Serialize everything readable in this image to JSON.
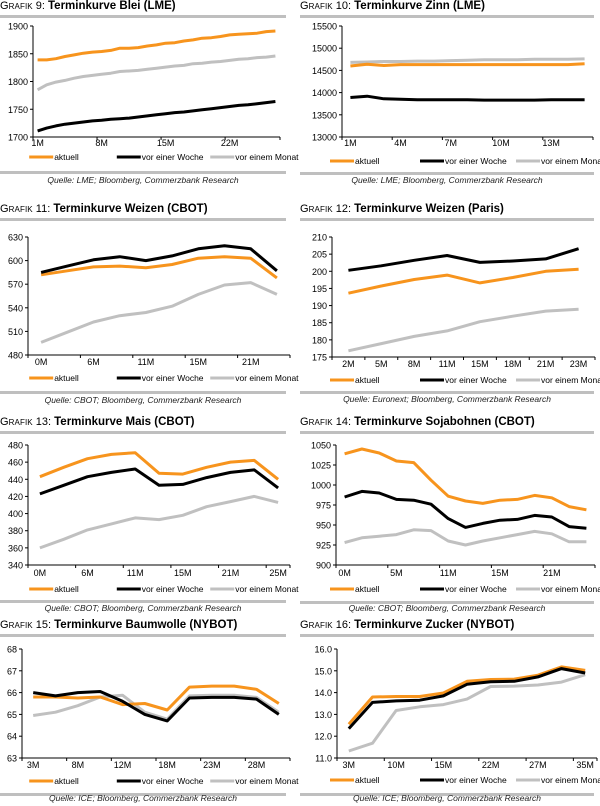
{
  "legend": {
    "labels": [
      "aktuell",
      "vor einer Woche",
      "vor einem Monat"
    ],
    "colors": [
      "#F7941D",
      "#000000",
      "#C0C0C0"
    ]
  },
  "chart_data": [
    {
      "id": "g9",
      "type": "line",
      "prefix": "Grafik",
      "number": "9:",
      "title": "Terminkurve Blei (LME)",
      "source": "Quelle: LME; Bloomberg, Commerzbank Research",
      "ylim": [
        1700,
        1900
      ],
      "yticks": [
        "1700",
        "1750",
        "1800",
        "1850",
        "1900"
      ],
      "yvals": [
        1700,
        1750,
        1800,
        1850,
        1900
      ],
      "xlabels": [
        "1M",
        "8M",
        "15M",
        "22M"
      ],
      "xlabel_index": [
        0,
        7,
        14,
        21
      ],
      "n": 27,
      "series": [
        {
          "name": "aktuell",
          "values": [
            1839,
            1839,
            1841,
            1845,
            1848,
            1851,
            1853,
            1854,
            1856,
            1860,
            1860,
            1861,
            1864,
            1866,
            1869,
            1870,
            1873,
            1875,
            1878,
            1879,
            1881,
            1884,
            1885,
            1886,
            1887,
            1890,
            1891
          ]
        },
        {
          "name": "vor einer Woche",
          "values": [
            1711,
            1716,
            1720,
            1723,
            1725,
            1727,
            1729,
            1730,
            1732,
            1733,
            1734,
            1736,
            1738,
            1740,
            1742,
            1744,
            1745,
            1747,
            1749,
            1751,
            1753,
            1755,
            1757,
            1758,
            1760,
            1762,
            1764
          ]
        },
        {
          "name": "vor einem Monat",
          "values": [
            1785,
            1794,
            1799,
            1802,
            1806,
            1809,
            1811,
            1813,
            1815,
            1818,
            1819,
            1820,
            1822,
            1824,
            1826,
            1828,
            1829,
            1832,
            1833,
            1835,
            1836,
            1838,
            1840,
            1841,
            1843,
            1844,
            1846
          ]
        }
      ]
    },
    {
      "id": "g10",
      "type": "line",
      "prefix": "Grafik",
      "number": "10:",
      "title": "Terminkurve Zinn (LME)",
      "source": "Quelle: LME; Bloomberg, Commerzbank Research",
      "ylim": [
        13000,
        15500
      ],
      "yticks": [
        "13000",
        "13500",
        "14000",
        "14500",
        "15000",
        "15500"
      ],
      "yvals": [
        13000,
        13500,
        14000,
        14500,
        15000,
        15500
      ],
      "xlabels": [
        "1M",
        "4M",
        "7M",
        "10M",
        "13M"
      ],
      "xlabel_index": [
        0,
        3,
        6,
        9,
        12
      ],
      "n": 15,
      "series": [
        {
          "name": "aktuell",
          "values": [
            14600,
            14640,
            14610,
            14630,
            14630,
            14630,
            14630,
            14630,
            14630,
            14630,
            14630,
            14630,
            14630,
            14630,
            14650
          ]
        },
        {
          "name": "vor einer Woche",
          "values": [
            13890,
            13920,
            13860,
            13850,
            13840,
            13840,
            13840,
            13840,
            13830,
            13830,
            13830,
            13830,
            13840,
            13840,
            13840
          ]
        },
        {
          "name": "vor einem Monat",
          "values": [
            14680,
            14690,
            14700,
            14700,
            14710,
            14710,
            14720,
            14730,
            14740,
            14740,
            14740,
            14750,
            14750,
            14750,
            14760
          ]
        }
      ]
    },
    {
      "id": "g11",
      "type": "line",
      "prefix": "Grafik",
      "number": "11:",
      "title": "Terminkurve Weizen (CBOT)",
      "source": "Quelle: CBOT; Bloomberg, Commerzbank Research",
      "ylim": [
        480,
        630
      ],
      "yticks": [
        "480",
        "510",
        "540",
        "570",
        "600",
        "630"
      ],
      "yvals": [
        480,
        510,
        540,
        570,
        600,
        630
      ],
      "xlabels": [
        "0M",
        "6M",
        "11M",
        "15M",
        "21M"
      ],
      "xlabel_index": [
        0,
        2,
        4,
        6,
        8
      ],
      "n": 10,
      "series": [
        {
          "name": "aktuell",
          "values": [
            582,
            587,
            592,
            593,
            591,
            595,
            603,
            605,
            603,
            578
          ]
        },
        {
          "name": "vor einer Woche",
          "values": [
            585,
            593,
            601,
            605,
            600,
            606,
            615,
            619,
            615,
            587
          ]
        },
        {
          "name": "vor einem Monat",
          "values": [
            496,
            509,
            522,
            530,
            534,
            542,
            557,
            569,
            572,
            557
          ]
        }
      ]
    },
    {
      "id": "g12",
      "type": "line",
      "prefix": "Grafik",
      "number": "12:",
      "title": "Terminkurve Weizen (Paris)",
      "source": "Quelle: Euronext; Bloomberg, Commerzbank Research",
      "ylim": [
        175,
        210
      ],
      "yticks": [
        "175",
        "180",
        "185",
        "190",
        "195",
        "200",
        "205",
        "210"
      ],
      "yvals": [
        175,
        180,
        185,
        190,
        195,
        200,
        205,
        210
      ],
      "xlabels": [
        "2M",
        "5M",
        "8M",
        "11M",
        "15M",
        "18M",
        "21M",
        "23M"
      ],
      "xlabel_index": [
        0,
        1,
        2,
        3,
        4,
        5,
        6,
        7
      ],
      "n": 8,
      "series": [
        {
          "name": "aktuell",
          "values": [
            193.6,
            195.7,
            197.6,
            198.9,
            196.6,
            198.2,
            200.0,
            200.6
          ]
        },
        {
          "name": "vor einer Woche",
          "values": [
            200.3,
            201.6,
            203.2,
            204.6,
            202.6,
            203.0,
            203.6,
            206.6
          ]
        },
        {
          "name": "vor einem Monat",
          "values": [
            176.8,
            178.9,
            181.0,
            182.6,
            185.3,
            186.9,
            188.4,
            188.9
          ]
        }
      ]
    },
    {
      "id": "g13",
      "type": "line",
      "prefix": "Grafik",
      "number": "13:",
      "title": "Terminkurve Mais (CBOT)",
      "source": "Quelle: CBOT; Bloomberg, Commerzbank Research",
      "ylim": [
        340,
        480
      ],
      "yticks": [
        "340",
        "360",
        "380",
        "400",
        "420",
        "440",
        "460",
        "480"
      ],
      "yvals": [
        340,
        360,
        380,
        400,
        420,
        440,
        460,
        480
      ],
      "xlabels": [
        "0M",
        "6M",
        "11M",
        "15M",
        "21M",
        "25M"
      ],
      "xlabel_index": [
        0,
        2,
        4,
        6,
        8,
        10
      ],
      "n": 11,
      "series": [
        {
          "name": "aktuell",
          "values": [
            443,
            454,
            464,
            469,
            471,
            447,
            446,
            454,
            460,
            462,
            440
          ]
        },
        {
          "name": "vor einer Woche",
          "values": [
            423,
            433,
            443,
            448,
            452,
            433,
            434,
            442,
            448,
            451,
            430
          ]
        },
        {
          "name": "vor einem Monat",
          "values": [
            360,
            370,
            381,
            388,
            395,
            393,
            398,
            408,
            414,
            420,
            413
          ]
        }
      ]
    },
    {
      "id": "g14",
      "type": "line",
      "prefix": "Grafik",
      "number": "14:",
      "title": "Terminkurve Sojabohnen (CBOT)",
      "source": "Quelle: CBOT; Bloomberg, Commerzbank Research",
      "ylim": [
        900,
        1050
      ],
      "yticks": [
        "900",
        "925",
        "950",
        "975",
        "1000",
        "1025",
        "1050"
      ],
      "yvals": [
        900,
        925,
        950,
        975,
        1000,
        1025,
        1050
      ],
      "xlabels": [
        "0M",
        "5M",
        "11M",
        "15M",
        "21M"
      ],
      "xlabel_index": [
        0,
        3,
        6,
        9,
        12
      ],
      "n": 15,
      "series": [
        {
          "name": "aktuell",
          "values": [
            1039,
            1045,
            1040,
            1030,
            1028,
            1006,
            986,
            980,
            977,
            981,
            982,
            987,
            984,
            973,
            969
          ]
        },
        {
          "name": "vor einer Woche",
          "values": [
            985,
            992,
            990,
            982,
            981,
            976,
            958,
            947,
            952,
            956,
            957,
            962,
            960,
            948,
            946
          ]
        },
        {
          "name": "vor einem Monat",
          "values": [
            928,
            934,
            936,
            938,
            944,
            943,
            930,
            925,
            930,
            934,
            938,
            942,
            939,
            929,
            929
          ]
        }
      ]
    },
    {
      "id": "g15",
      "type": "line",
      "prefix": "Grafik",
      "number": "15:",
      "title": "Terminkurve Baumwolle (NYBOT)",
      "source": "Quelle: ICE; Bloomberg, Commerzbank Research",
      "ylim": [
        63,
        68
      ],
      "yticks": [
        "63",
        "64",
        "65",
        "66",
        "67",
        "68"
      ],
      "yvals": [
        63,
        64,
        65,
        66,
        67,
        68
      ],
      "xlabels": [
        "3M",
        "8M",
        "12M",
        "18M",
        "23M",
        "28M"
      ],
      "xlabel_index": [
        0,
        2,
        4,
        6,
        8,
        10
      ],
      "n": 12,
      "series": [
        {
          "name": "aktuell",
          "values": [
            65.8,
            65.8,
            65.75,
            65.8,
            65.45,
            65.5,
            65.2,
            66.25,
            66.3,
            66.3,
            66.15,
            65.5
          ]
        },
        {
          "name": "vor einer Woche",
          "values": [
            66.0,
            65.85,
            66.0,
            66.05,
            65.6,
            65.0,
            64.7,
            65.75,
            65.78,
            65.78,
            65.7,
            65.0
          ]
        },
        {
          "name": "vor einem Monat",
          "values": [
            64.95,
            65.1,
            65.4,
            65.8,
            65.88,
            65.1,
            64.78,
            65.85,
            65.88,
            65.88,
            65.78,
            65.1
          ]
        }
      ]
    },
    {
      "id": "g16",
      "type": "line",
      "prefix": "Grafik",
      "number": "16:",
      "title": "Terminkurve Zucker (NYBOT)",
      "source": "Quelle: ICE; Bloomberg, Commerzbank Research",
      "ylim": [
        11.0,
        16.0
      ],
      "yticks": [
        "11.0",
        "12.0",
        "13.0",
        "14.0",
        "15.0",
        "16.0"
      ],
      "yvals": [
        11,
        12,
        13,
        14,
        15,
        16
      ],
      "xlabels": [
        "3M",
        "10M",
        "15M",
        "22M",
        "27M",
        "35M"
      ],
      "xlabel_index": [
        0,
        2,
        4,
        6,
        8,
        10
      ],
      "n": 11,
      "series": [
        {
          "name": "aktuell",
          "values": [
            12.55,
            13.8,
            13.82,
            13.82,
            13.98,
            14.52,
            14.6,
            14.62,
            14.8,
            15.18,
            15.02
          ]
        },
        {
          "name": "vor einer Woche",
          "values": [
            12.35,
            13.55,
            13.62,
            13.65,
            13.85,
            14.38,
            14.5,
            14.52,
            14.72,
            15.1,
            14.9
          ]
        },
        {
          "name": "vor einem Monat",
          "values": [
            11.32,
            11.68,
            13.18,
            13.35,
            13.45,
            13.7,
            14.28,
            14.3,
            14.35,
            14.48,
            14.82
          ]
        }
      ]
    }
  ]
}
